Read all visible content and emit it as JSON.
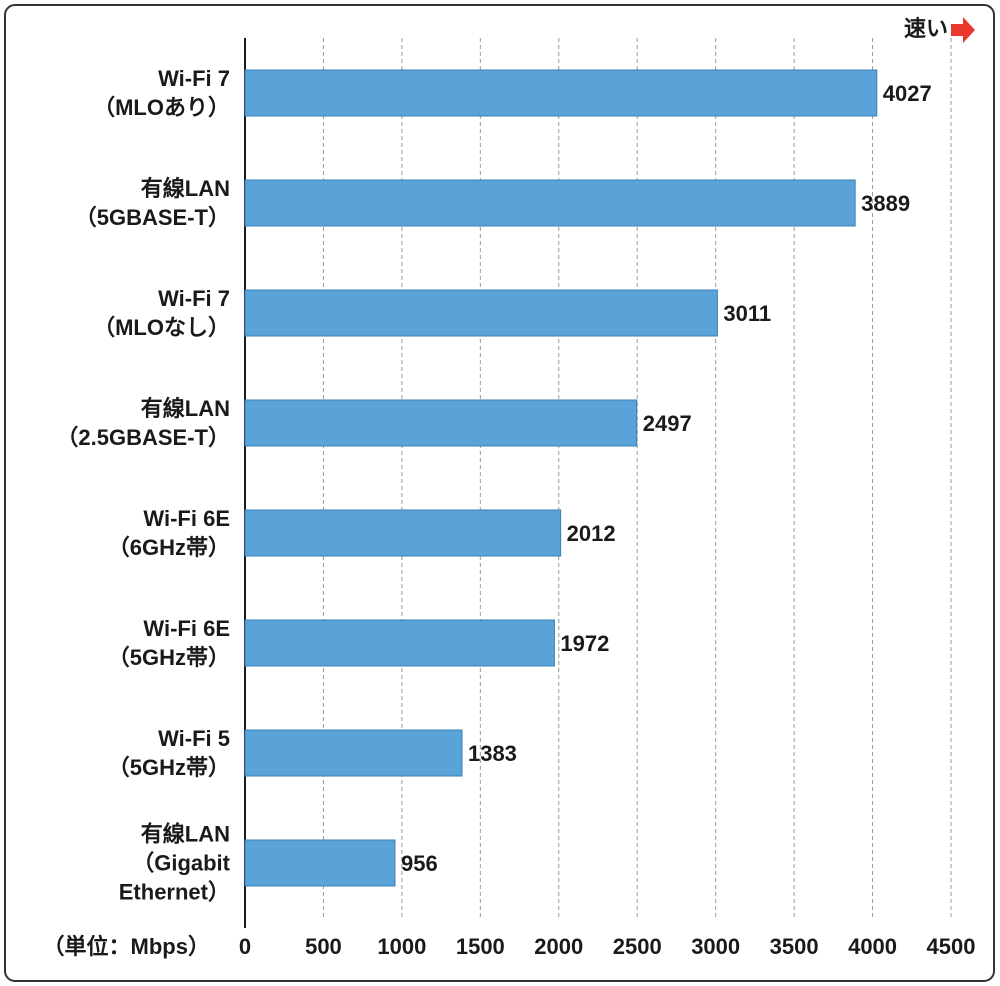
{
  "chart_data": {
    "type": "bar",
    "orientation": "horizontal",
    "categories": [
      "Wi-Fi 7\n（MLOあり）",
      "有線LAN\n（5GBASE-T）",
      "Wi-Fi 7\n（MLOなし）",
      "有線LAN\n（2.5GBASE-T）",
      "Wi-Fi 6E\n（6GHz帯）",
      "Wi-Fi 6E\n（5GHz帯）",
      "Wi-Fi 5\n（5GHz帯）",
      "有線LAN\n（Gigabit\nEthernet）"
    ],
    "values": [
      4027,
      3889,
      3011,
      2497,
      2012,
      1972,
      1383,
      956
    ],
    "color": "#5aa3d9",
    "xlim": [
      0,
      4500
    ],
    "xticks": [
      0,
      500,
      1000,
      1500,
      2000,
      2500,
      3000,
      3500,
      4000,
      4500
    ],
    "grid": true,
    "unit_label": "（単位：Mbps）",
    "direction_label": "速い"
  }
}
